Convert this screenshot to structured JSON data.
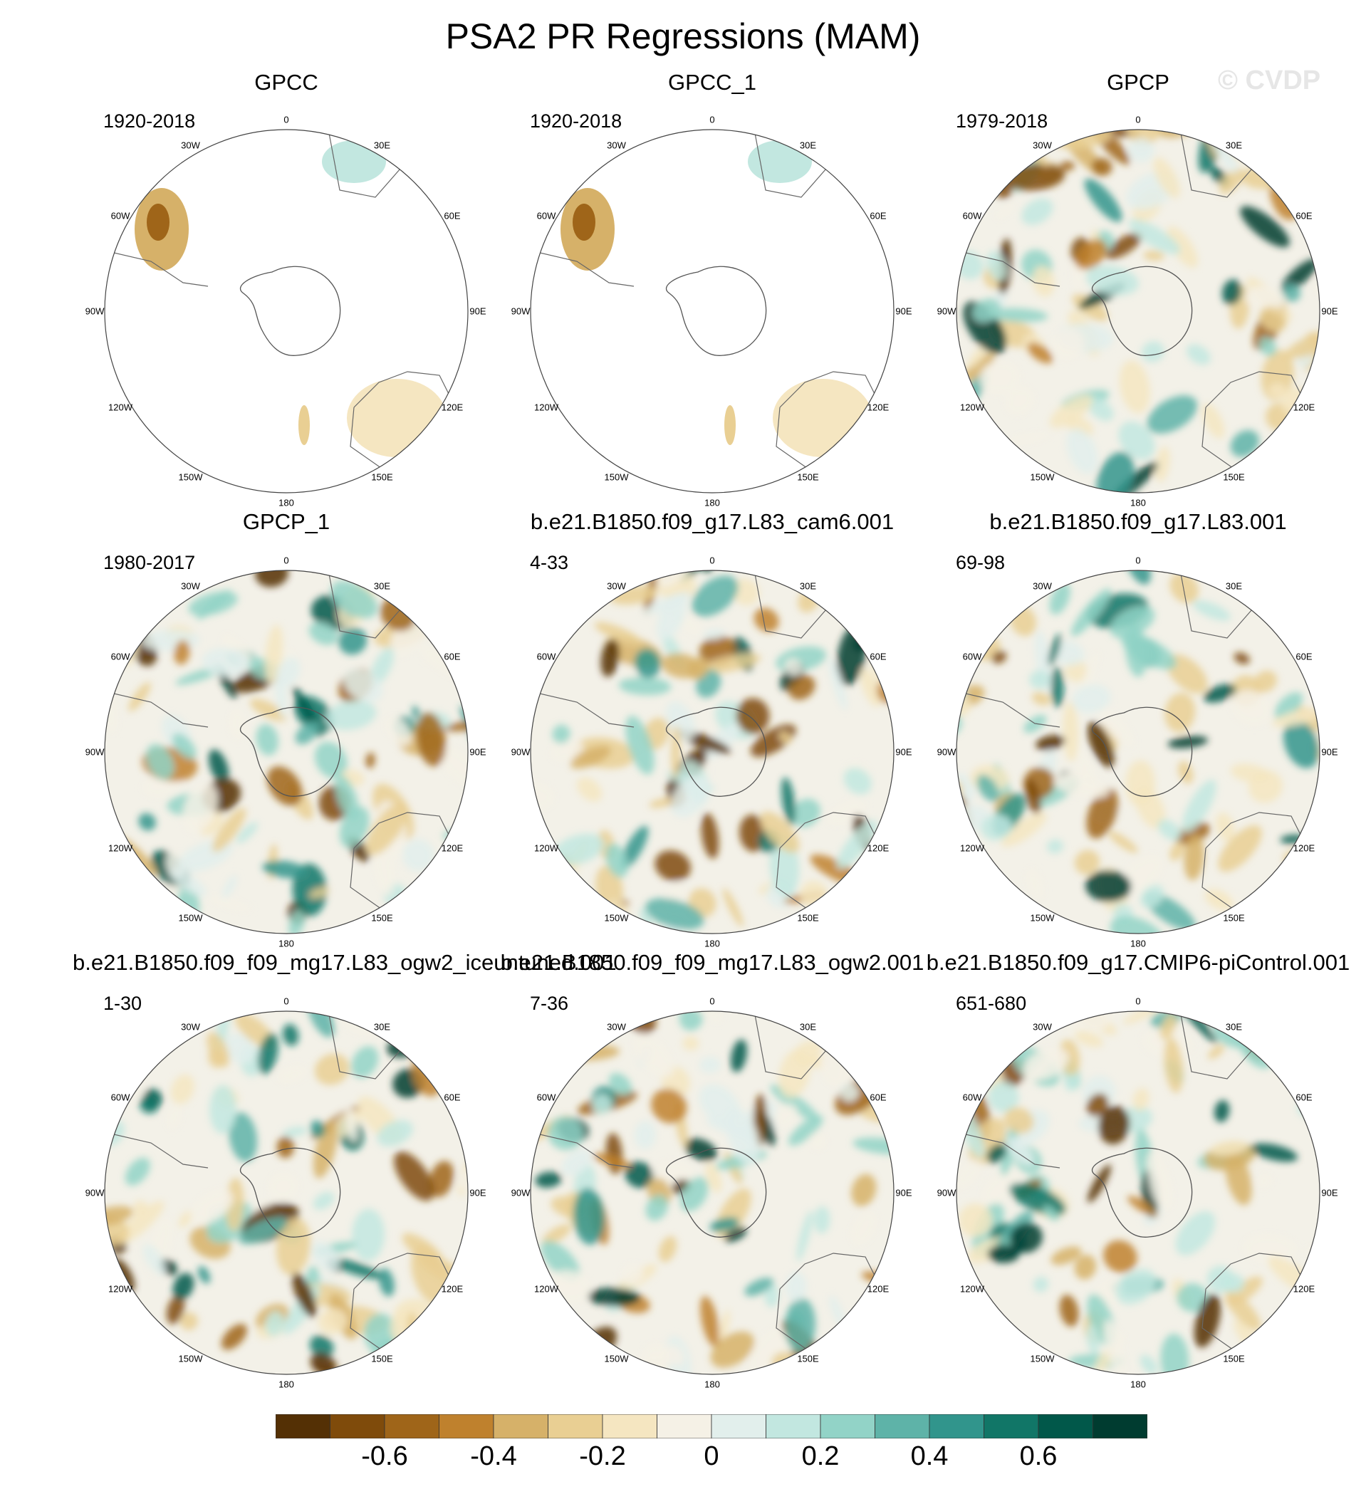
{
  "title": "PSA2 PR Regressions (MAM)",
  "watermark": "© CVDP",
  "lon_labels": [
    "0",
    "30E",
    "60E",
    "90E",
    "120E",
    "150E",
    "180",
    "150W",
    "120W",
    "90W",
    "60W",
    "30W"
  ],
  "panels": [
    {
      "title": "GPCC",
      "period": "1920-2018",
      "field": "land-only"
    },
    {
      "title": "GPCC_1",
      "period": "1920-2018",
      "field": "land-only"
    },
    {
      "title": "GPCP",
      "period": "1979-2018",
      "field": "full"
    },
    {
      "title": "GPCP_1",
      "period": "1980-2017",
      "field": "full"
    },
    {
      "title": "b.e21.B1850.f09_g17.L83_cam6.001",
      "period": "4-33",
      "field": "full"
    },
    {
      "title": "b.e21.B1850.f09_g17.L83.001",
      "period": "69-98",
      "field": "full"
    },
    {
      "title": "b.e21.B1850.f09_f09_mg17.L83_ogw2_iceuntuned.001",
      "period": "1-30",
      "field": "full"
    },
    {
      "title": "b.e21.B1850.f09_f09_mg17.L83_ogw2.001",
      "period": "7-36",
      "field": "full"
    },
    {
      "title": "b.e21.B1850.f09_g17.CMIP6-piControl.001",
      "period": "651-680",
      "field": "full"
    }
  ],
  "colorbar": {
    "colors": [
      "#543005",
      "#7f4b0b",
      "#9f6519",
      "#bf812d",
      "#d6b169",
      "#e9cf93",
      "#f5e6c1",
      "#f5f1e6",
      "#e2efec",
      "#c2e7e0",
      "#92d3c7",
      "#5eb3a8",
      "#31958c",
      "#117667",
      "#01584a",
      "#003c30"
    ],
    "labels": [
      "-0.6",
      "-0.4",
      "-0.2",
      "0",
      "0.2",
      "0.4",
      "0.6"
    ]
  }
}
